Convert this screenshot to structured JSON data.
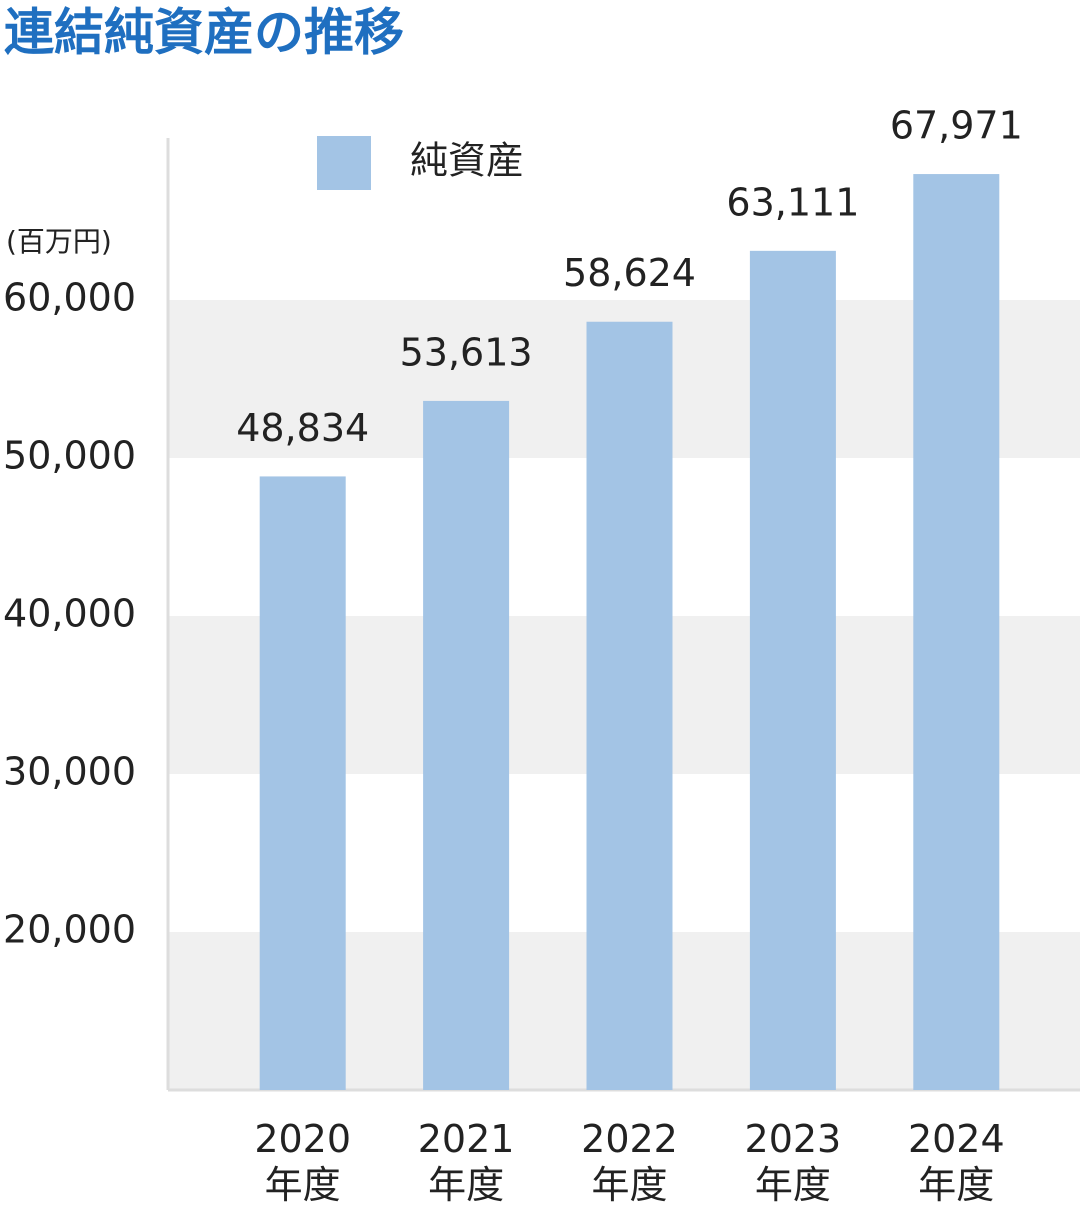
{
  "chart_data": {
    "type": "bar",
    "title": "連結純資産の推移",
    "y_label": "(百万円)",
    "categories": [
      "2020\n年度",
      "2021\n年度",
      "2022\n年度",
      "2023\n年度",
      "2024\n年度"
    ],
    "series": [
      {
        "name": "純資産",
        "color": "#a3c4e5",
        "values": [
          48834,
          53613,
          58624,
          63111,
          67971
        ],
        "value_labels": [
          "48,834",
          "53,613",
          "58,624",
          "63,111",
          "67,971"
        ]
      }
    ],
    "ylim": [
      10000,
      70000
    ],
    "yticks": [
      {
        "value": 20000,
        "label": "20,000"
      },
      {
        "value": 30000,
        "label": "30,000"
      },
      {
        "value": 40000,
        "label": "40,000"
      },
      {
        "value": 50000,
        "label": "50,000"
      },
      {
        "value": 60000,
        "label": "60,000"
      }
    ],
    "grid": true
  }
}
